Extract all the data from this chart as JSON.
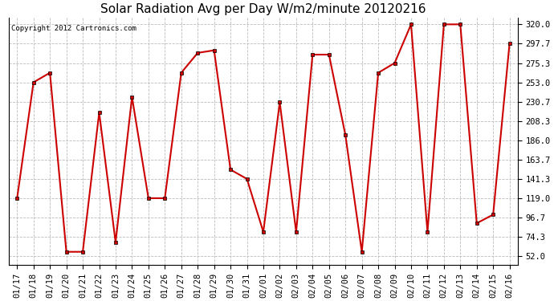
{
  "title": "Solar Radiation Avg per Day W/m2/minute 20120216",
  "copyright": "Copyright 2012 Cartronics.com",
  "dates": [
    "01/17",
    "01/18",
    "01/19",
    "01/20",
    "01/21",
    "01/22",
    "01/23",
    "01/24",
    "01/25",
    "01/26",
    "01/27",
    "01/28",
    "01/29",
    "01/30",
    "01/31",
    "02/01",
    "02/02",
    "02/03",
    "02/04",
    "02/05",
    "02/06",
    "02/07",
    "02/08",
    "02/09",
    "02/10",
    "02/11",
    "02/12",
    "02/13",
    "02/14",
    "02/15",
    "02/16"
  ],
  "values": [
    119.0,
    253.0,
    264.0,
    57.0,
    57.0,
    218.0,
    68.0,
    236.0,
    119.0,
    119.0,
    264.0,
    287.0,
    290.0,
    152.0,
    141.3,
    80.0,
    230.0,
    80.0,
    285.0,
    285.0,
    192.0,
    57.0,
    264.0,
    275.3,
    320.0,
    80.0,
    320.0,
    320.0,
    90.0,
    100.0,
    298.0
  ],
  "line_color": "#cc0000",
  "marker": "s",
  "marker_size": 2.5,
  "marker_edge_color": "#000000",
  "bg_color": "#ffffff",
  "plot_bg_color": "#ffffff",
  "grid_color": "#bbbbbb",
  "grid_linestyle": "--",
  "yticks": [
    52.0,
    74.3,
    96.7,
    119.0,
    141.3,
    163.7,
    186.0,
    208.3,
    230.7,
    253.0,
    275.3,
    297.7,
    320.0
  ],
  "ylim_min": 42.0,
  "ylim_max": 328.0,
  "title_fontsize": 11,
  "tick_fontsize": 7.5,
  "copyright_fontsize": 6.5,
  "linewidth": 1.5
}
